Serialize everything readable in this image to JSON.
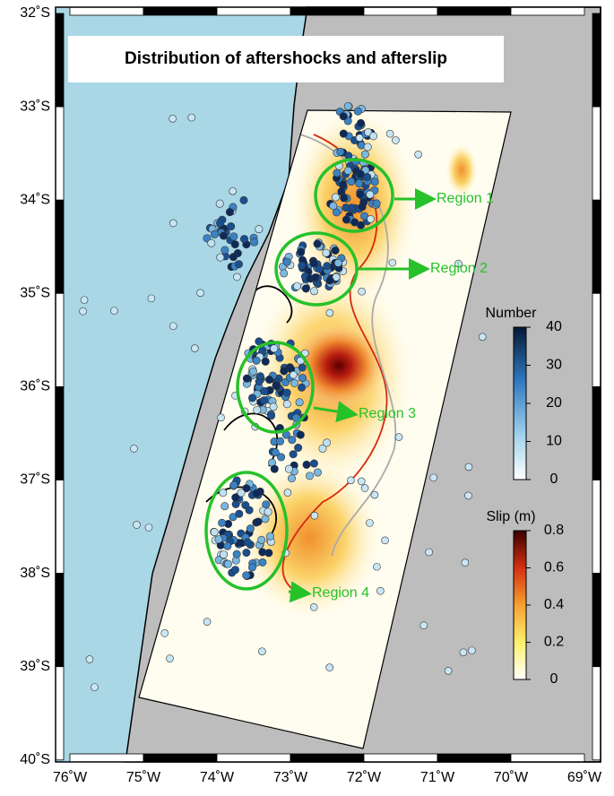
{
  "title": "Distribution of aftershocks and afterslip",
  "lat_labels": [
    "32˚S",
    "33˚S",
    "34˚S",
    "35˚S",
    "36˚S",
    "37˚S",
    "38˚S",
    "39˚S",
    "40˚S"
  ],
  "lon_labels": [
    "76˚W",
    "75˚W",
    "74˚W",
    "73˚W",
    "72˚W",
    "71˚W",
    "70˚W",
    "69˚W"
  ],
  "regions": [
    "Region 1",
    "Region 2",
    "Region 3",
    "Region 4"
  ],
  "number_colorbar": {
    "label": "Number",
    "lim": [
      0,
      40
    ],
    "ticks": [
      0,
      10,
      20,
      30,
      40
    ]
  },
  "slip_colorbar": {
    "label": "Slip (m)",
    "lim": [
      0,
      0.8
    ],
    "ticks": [
      0,
      0.2,
      0.4,
      0.6,
      0.8
    ]
  }
}
